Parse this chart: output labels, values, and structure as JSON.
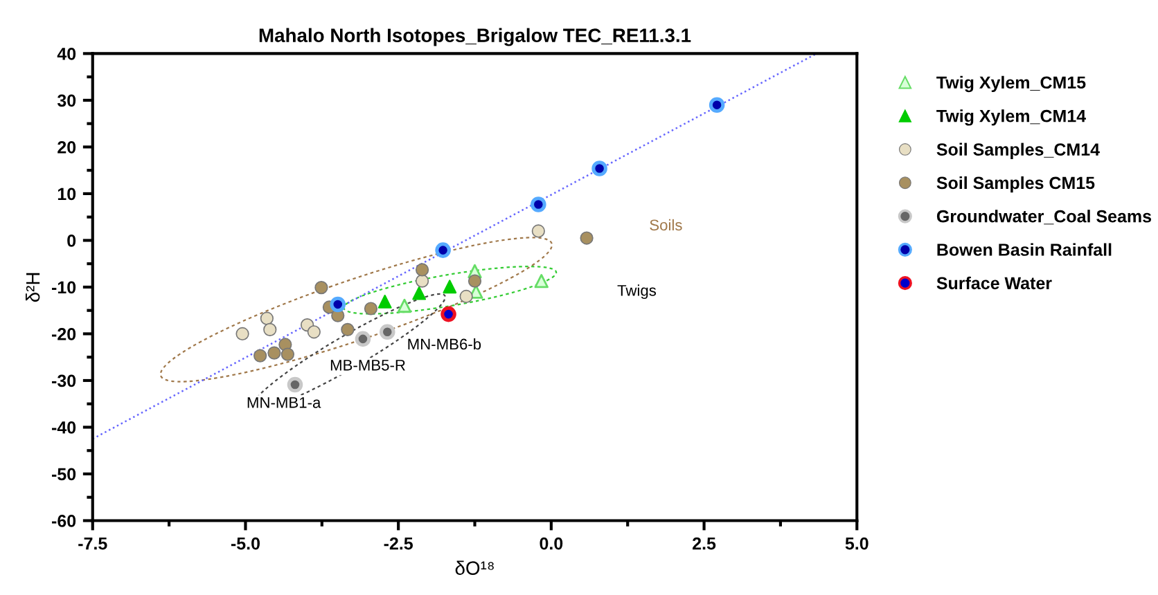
{
  "chart_data": {
    "type": "scatter",
    "title": "Mahalo North Isotopes_Brigalow TEC_RE11.3.1",
    "xlabel": "δO¹⁸",
    "ylabel": "δ²H",
    "xlim": [
      -7.5,
      5.0
    ],
    "xticks": [
      {
        "value": -7.5,
        "label": "-7.5"
      },
      {
        "value": -5.0,
        "label": "-5.0"
      },
      {
        "value": -2.5,
        "label": "-2.5"
      },
      {
        "value": 0.0,
        "label": "0.0"
      },
      {
        "value": 2.5,
        "label": "2.5"
      },
      {
        "value": 5.0,
        "label": "5.0"
      }
    ],
    "ylim": [
      -60,
      40
    ],
    "yticks": [
      -60,
      -50,
      -40,
      -30,
      -20,
      -10,
      0,
      10,
      20,
      30,
      40
    ],
    "grid": false,
    "legend": "right",
    "series": [
      {
        "name": "Twig Xylem_CM15",
        "color": "#66dd66",
        "marker": "triangle",
        "x": [
          -2.4,
          -1.25,
          -1.23,
          -0.16
        ],
        "values": [
          -14.0,
          -6.6,
          -11.0,
          -8.7
        ]
      },
      {
        "name": "Twig Xylem_CM14",
        "color": "#00cc00",
        "marker": "triangle",
        "x": [
          -2.72,
          -2.16,
          -1.66
        ],
        "values": [
          -13.1,
          -11.3,
          -9.9
        ]
      },
      {
        "name": "Soil Samples_CM14",
        "color": "#e8dfc4",
        "marker": "circle",
        "x": [
          -5.05,
          -4.65,
          -4.6,
          -3.99,
          -3.88,
          -2.11,
          -1.39,
          -0.21
        ],
        "values": [
          -20.0,
          -16.7,
          -19.1,
          -18.1,
          -19.6,
          -8.7,
          -12.0,
          2.0
        ]
      },
      {
        "name": "Soil Samples CM15",
        "color": "#a89060",
        "marker": "circle",
        "x": [
          -3.76,
          -3.63,
          -3.49,
          -3.33,
          -2.95,
          -2.11,
          -1.25,
          -4.35,
          -4.76,
          -4.53,
          -4.31,
          0.58
        ],
        "values": [
          -10.1,
          -14.3,
          -16.1,
          -19.1,
          -14.6,
          -6.3,
          -8.7,
          -22.3,
          -24.7,
          -24.1,
          -24.4,
          0.5
        ]
      },
      {
        "name": "Groundwater_Coal Seams",
        "color": "#c8c8c8",
        "marker": "circle",
        "x": [
          -3.08,
          -2.68,
          -4.19
        ],
        "values": [
          -21.1,
          -19.6,
          -30.9
        ]
      },
      {
        "name": "Bowen Basin Rainfall",
        "color": "#55aaff",
        "marker": "circle",
        "x": [
          2.71,
          0.79,
          -0.21,
          -1.77,
          -3.49
        ],
        "values": [
          29.0,
          15.4,
          7.7,
          -2.1,
          -13.7
        ]
      },
      {
        "name": "Surface Water",
        "color": "#ee1122",
        "marker": "circle",
        "x": [
          -1.68
        ],
        "values": [
          -15.8
        ]
      },
      {
        "type": "line",
        "color": "#6666ff",
        "line_style": "dotted",
        "marker": "none",
        "x": [
          -7.5,
          4.34
        ],
        "values": [
          -42.5,
          40.0
        ]
      }
    ],
    "annotations": [
      "MN-MB1-a",
      "MB-MB5-R",
      "MN-MB6-b",
      "Soils",
      "Twigs"
    ]
  }
}
